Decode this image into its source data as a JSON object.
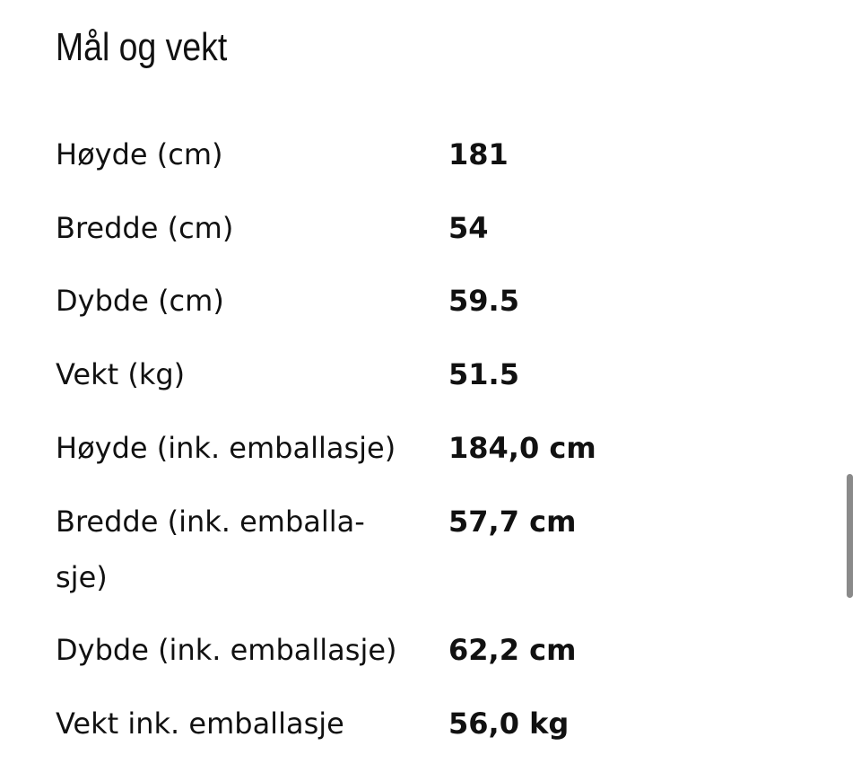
{
  "title": "Mål og vekt",
  "rows": [
    {
      "label": "Høyde (cm)",
      "value": "181"
    },
    {
      "label": "Bredde (cm)",
      "value": "54"
    },
    {
      "label": "Dybde (cm)",
      "value": "59.5"
    },
    {
      "label": "Vekt (kg)",
      "value": "51.5"
    },
    {
      "label": "Høyde (ink. emballasje)",
      "value": "184,0 cm"
    },
    {
      "label": "Bredde (ink. emballa-sje)",
      "label_line1": "Bredde (ink. emballa-",
      "label_line2": "sje)",
      "value": "57,7 cm"
    },
    {
      "label": "Dybde (ink. emballasje)",
      "value": "62,2 cm"
    },
    {
      "label": "Vekt ink. emballasje",
      "value": "56,0 kg"
    }
  ]
}
